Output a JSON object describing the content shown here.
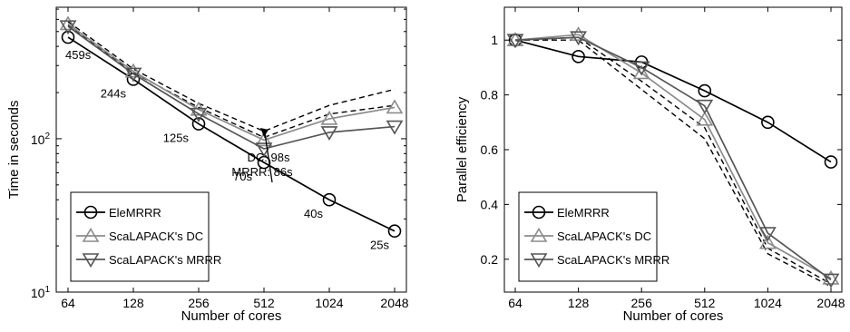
{
  "chart_data": [
    {
      "type": "line",
      "x_scale": "log2",
      "y_scale": "log",
      "x": [
        64,
        128,
        256,
        512,
        1024,
        2048
      ],
      "xtick_labels": [
        "64",
        "128",
        "256",
        "512",
        "1024",
        "2048"
      ],
      "ytick_labels": [
        {
          "value": 10,
          "base": "10",
          "exp": "1"
        },
        {
          "value": 100,
          "base": "10",
          "exp": "2"
        }
      ],
      "xlabel": "Number of cores",
      "ylabel": "Time in seconds",
      "ylim": [
        10,
        720
      ],
      "grid": false,
      "legend_position": "bottom-left",
      "series": [
        {
          "name": "EleMRRR",
          "marker": "circle",
          "color": "#000000",
          "style": "solid",
          "values": [
            459,
            244,
            125,
            70,
            40,
            25
          ]
        },
        {
          "name": "ScaLAPACK's DC",
          "marker": "triangle-up",
          "color": "#8c8c8c",
          "style": "solid",
          "values": [
            560,
            275,
            155,
            98,
            135,
            160
          ]
        },
        {
          "name": "ScaLAPACK's MRRR",
          "marker": "triangle-down",
          "color": "#555555",
          "style": "solid",
          "values": [
            540,
            265,
            145,
            86,
            110,
            120
          ]
        },
        {
          "name": "",
          "marker": "none",
          "color": "#000000",
          "style": "dashed",
          "values": [
            580,
            285,
            170,
            112,
            165,
            210
          ],
          "in_legend": false
        },
        {
          "name": "",
          "marker": "none",
          "color": "#000000",
          "style": "dashed",
          "values": [
            550,
            270,
            160,
            102,
            145,
            165
          ],
          "in_legend": false
        }
      ],
      "annotations": [
        {
          "text": "459s",
          "x": 64,
          "y": 459
        },
        {
          "text": "244s",
          "x": 128,
          "y": 244
        },
        {
          "text": "125s",
          "x": 256,
          "y": 125
        },
        {
          "text": "70s",
          "x": 512,
          "y": 70
        },
        {
          "text": "40s",
          "x": 1024,
          "y": 40
        },
        {
          "text": "25s",
          "x": 2048,
          "y": 25
        }
      ],
      "callout": {
        "lines": [
          "DC: 98s",
          "MRRR: 86s"
        ],
        "x": 512,
        "y": 100
      }
    },
    {
      "type": "line",
      "x_scale": "log2",
      "y_scale": "linear",
      "x": [
        64,
        128,
        256,
        512,
        1024,
        2048
      ],
      "xtick_labels": [
        "64",
        "128",
        "256",
        "512",
        "1024",
        "2048"
      ],
      "ytick_labels": [
        "0.2",
        "0.4",
        "0.6",
        "0.8",
        "1"
      ],
      "ytick_values": [
        0.2,
        0.4,
        0.6,
        0.8,
        1.0
      ],
      "xlabel": "Number of cores",
      "ylabel": "Parallel efficiency",
      "ylim": [
        0.08,
        1.12
      ],
      "grid": false,
      "legend_position": "bottom-left",
      "series": [
        {
          "name": "EleMRRR",
          "marker": "circle",
          "color": "#000000",
          "style": "solid",
          "values": [
            1.0,
            0.94,
            0.92,
            0.815,
            0.7,
            0.555
          ]
        },
        {
          "name": "ScaLAPACK's DC",
          "marker": "triangle-up",
          "color": "#8c8c8c",
          "style": "solid",
          "values": [
            1.0,
            1.02,
            0.88,
            0.71,
            0.26,
            0.13
          ]
        },
        {
          "name": "ScaLAPACK's MRRR",
          "marker": "triangle-down",
          "color": "#555555",
          "style": "solid",
          "values": [
            1.0,
            1.01,
            0.9,
            0.76,
            0.295,
            0.125
          ]
        },
        {
          "name": "",
          "marker": "none",
          "color": "#000000",
          "style": "dashed",
          "values": [
            1.0,
            1.0,
            0.82,
            0.64,
            0.22,
            0.1
          ],
          "in_legend": false
        },
        {
          "name": "",
          "marker": "none",
          "color": "#000000",
          "style": "dashed",
          "values": [
            1.0,
            1.01,
            0.85,
            0.68,
            0.24,
            0.11
          ],
          "in_legend": false
        }
      ]
    }
  ]
}
